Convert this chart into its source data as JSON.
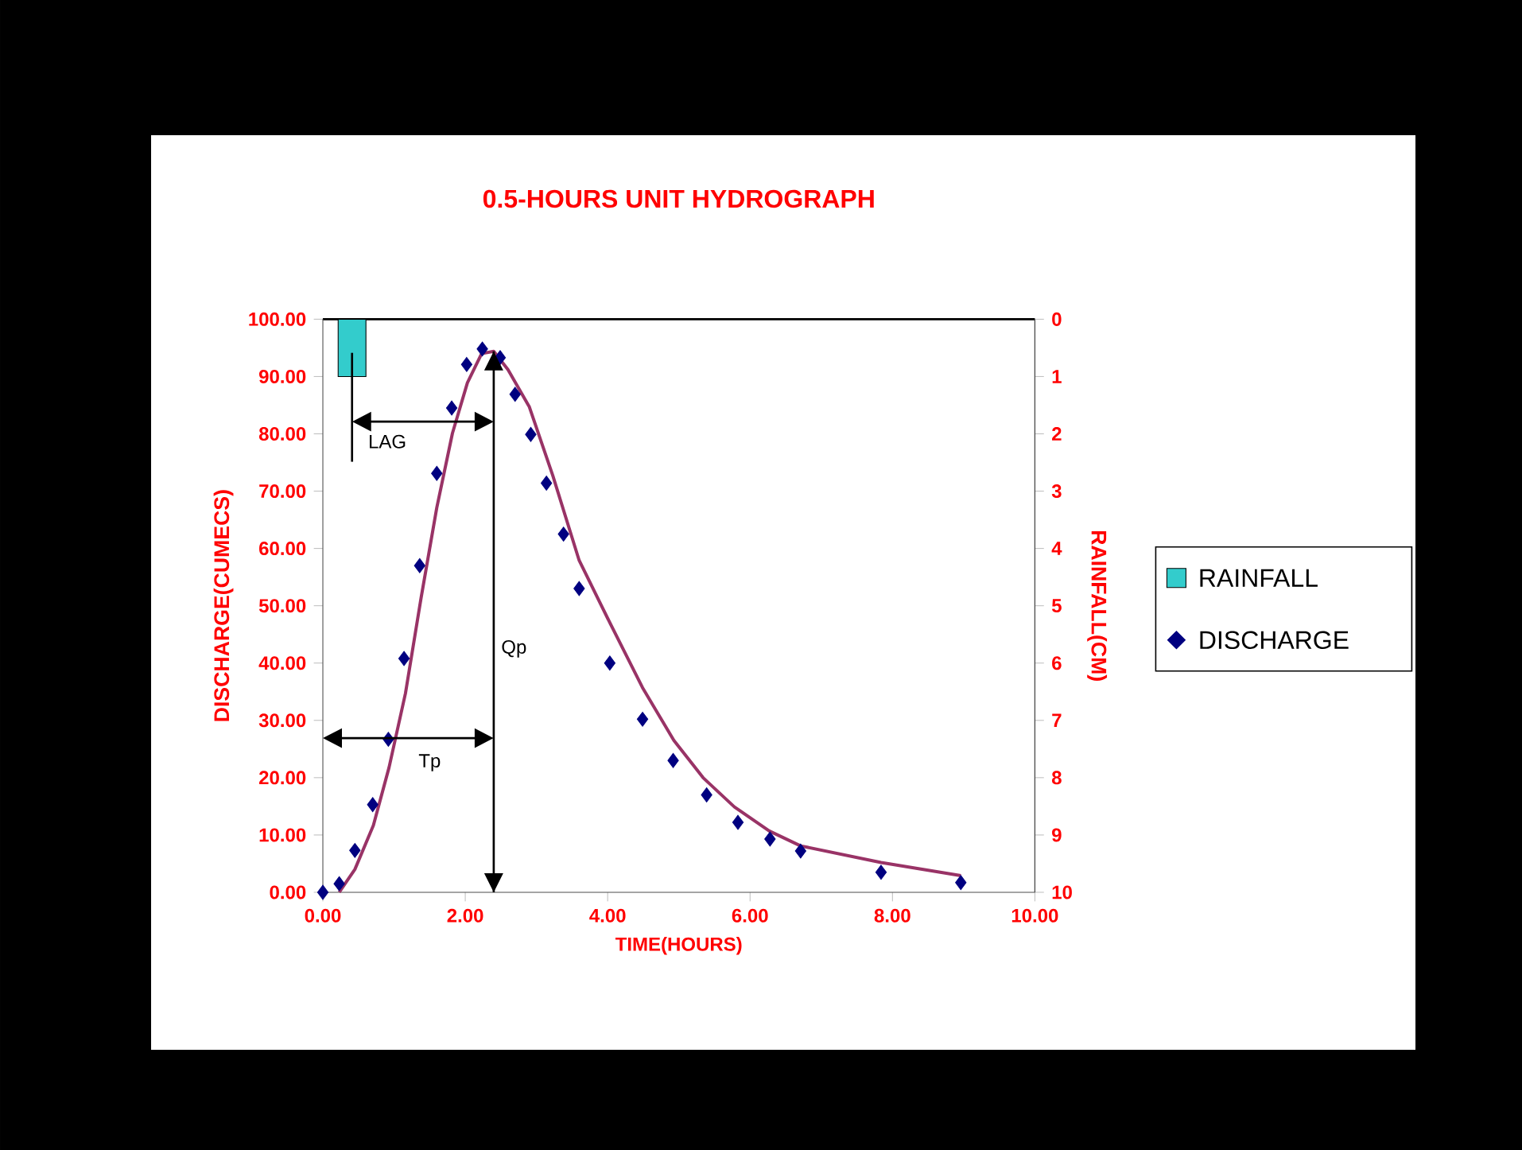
{
  "chart_data": {
    "type": "scatter",
    "title": "0.5-HOURS UNIT HYDROGRAPH",
    "xlabel": "TIME(HOURS)",
    "ylabel": "DISCHARGE(CUMECS)",
    "y2label": "RAINFALL(CM)",
    "xlim": [
      0,
      10
    ],
    "ylim": [
      0,
      100
    ],
    "y2lim": [
      10,
      0
    ],
    "xticks": [
      {
        "value": 0,
        "label": "0.00"
      },
      {
        "value": 2,
        "label": "2.00"
      },
      {
        "value": 4,
        "label": "4.00"
      },
      {
        "value": 6,
        "label": "6.00"
      },
      {
        "value": 8,
        "label": "8.00"
      },
      {
        "value": 10,
        "label": "10.00"
      }
    ],
    "yticks": [
      {
        "value": 0,
        "label": "0.00"
      },
      {
        "value": 10,
        "label": "10.00"
      },
      {
        "value": 20,
        "label": "20.00"
      },
      {
        "value": 30,
        "label": "30.00"
      },
      {
        "value": 40,
        "label": "40.00"
      },
      {
        "value": 50,
        "label": "50.00"
      },
      {
        "value": 60,
        "label": "60.00"
      },
      {
        "value": 70,
        "label": "70.00"
      },
      {
        "value": 80,
        "label": "80.00"
      },
      {
        "value": 90,
        "label": "90.00"
      },
      {
        "value": 100,
        "label": "100.00"
      }
    ],
    "y2ticks": [
      0,
      1,
      2,
      3,
      4,
      5,
      6,
      7,
      8,
      9,
      10
    ],
    "legend": "right",
    "grid": false,
    "series": [
      {
        "name": "RAINFALL",
        "type": "bar",
        "axis": "y2",
        "color": "#33cccc",
        "x": [
          0.41
        ],
        "values": [
          1
        ]
      },
      {
        "name": "DISCHARGE",
        "marker": "diamond",
        "color": "#000080",
        "x": [
          0,
          0.23,
          0.45,
          0.7,
          0.92,
          1.14,
          1.36,
          1.6,
          1.81,
          2.02,
          2.24,
          2.49,
          2.7,
          2.92,
          3.14,
          3.38,
          3.6,
          4.03,
          4.49,
          4.92,
          5.39,
          5.83,
          6.28,
          6.71,
          7.84,
          8.96
        ],
        "values": [
          0,
          1.5,
          7.3,
          15.3,
          26.7,
          40.8,
          57.0,
          73.1,
          84.5,
          92.1,
          94.8,
          93.3,
          86.9,
          79.9,
          71.4,
          62.5,
          53.0,
          40.0,
          30.2,
          23.0,
          17.0,
          12.2,
          9.3,
          7.2,
          3.5,
          1.7
        ]
      },
      {
        "type": "line",
        "color": "#993366",
        "x": [
          0.23,
          0.45,
          0.71,
          0.93,
          1.16,
          1.38,
          1.6,
          1.82,
          2.03,
          2.23,
          2.4,
          2.6,
          2.9,
          3.23,
          3.6,
          4.04,
          4.49,
          4.93,
          5.34,
          5.78,
          6.27,
          6.71,
          7.84,
          8.96
        ],
        "values": [
          0,
          4,
          11.7,
          21.8,
          34.7,
          51.4,
          67.1,
          80.1,
          88.9,
          94.0,
          94.4,
          91.2,
          84.7,
          72.7,
          57.9,
          46.8,
          35.7,
          26.5,
          20.0,
          14.9,
          10.7,
          8.1,
          5.2,
          2.9
        ]
      }
    ],
    "ref_lines": [
      {
        "axis": "x",
        "value": 2.4,
        "label": "Qp",
        "color": "#000000"
      }
    ],
    "annotations": [
      "LAG",
      "Tp"
    ]
  }
}
